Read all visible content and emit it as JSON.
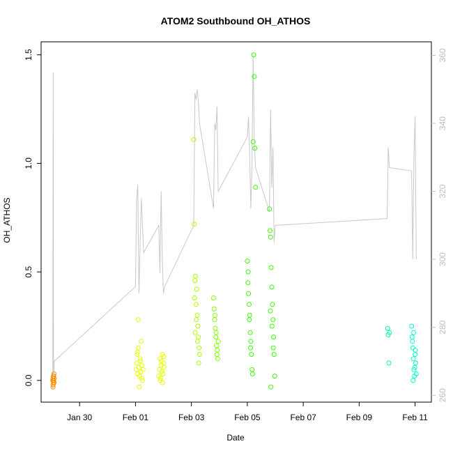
{
  "chart_data": {
    "type": "scatter",
    "title": "ATOM2 Southbound OH_ATHOS",
    "xlabel": "Date",
    "ylabel": "OH_ATHOS",
    "x_unit": "date",
    "xlim": [
      "2016-01-28T15:00",
      "2016-02-11T14:00"
    ],
    "ylim": [
      -0.1,
      1.56
    ],
    "y2lim": [
      258,
      364
    ],
    "x_ticks": [
      {
        "label": "Jan 30",
        "date": "2016-01-30"
      },
      {
        "label": "Feb 01",
        "date": "2016-02-01"
      },
      {
        "label": "Feb 03",
        "date": "2016-02-03"
      },
      {
        "label": "Feb 05",
        "date": "2016-02-05"
      },
      {
        "label": "Feb 07",
        "date": "2016-02-07"
      },
      {
        "label": "Feb 09",
        "date": "2016-02-09"
      },
      {
        "label": "Feb 11",
        "date": "2016-02-11"
      }
    ],
    "y_ticks": [
      {
        "label": "0.0",
        "value": 0.0
      },
      {
        "label": "0.5",
        "value": 0.5
      },
      {
        "label": "1.0",
        "value": 1.0
      },
      {
        "label": "1.5",
        "value": 1.5
      }
    ],
    "y2_ticks": [
      {
        "label": "260",
        "value": 260
      },
      {
        "label": "280",
        "value": 280
      },
      {
        "label": "300",
        "value": 300
      },
      {
        "label": "320",
        "value": 320
      },
      {
        "label": "340",
        "value": 340
      },
      {
        "label": "360",
        "value": 360
      }
    ],
    "colors": {
      "line": "#c8c8c8",
      "axis": "#000000",
      "y2_axis": "#bdbdbd",
      "flights": [
        "#ff8c00",
        "#e6ff00",
        "#e6ff00",
        "#aaff00",
        "#80ff00",
        "#33ff00",
        "#33ff00",
        "#00ff99",
        "#00ffcc"
      ]
    },
    "grid": false,
    "legend": "none",
    "flights": [
      {
        "color": "#ff8c00",
        "x": [
          "2016-01-29T01:00",
          "2016-01-29T01:10",
          "2016-01-29T01:20",
          "2016-01-29T01:30",
          "2016-01-29T01:40",
          "2016-01-29T01:50",
          "2016-01-29T02:00",
          "2016-01-29T02:10",
          "2016-01-29T01:15",
          "2016-01-29T01:35",
          "2016-01-29T01:45",
          "2016-01-29T02:05"
        ],
        "y": [
          0.0,
          0.01,
          -0.02,
          0.02,
          -0.01,
          0.0,
          0.03,
          0.01,
          -0.03,
          0.0,
          0.02,
          -0.01
        ]
      },
      {
        "color": "#e6ff00",
        "x": [
          "2016-02-01T00:30",
          "2016-02-01T01:00",
          "2016-02-01T01:30",
          "2016-02-01T02:00",
          "2016-02-01T02:30",
          "2016-02-01T03:00",
          "2016-02-01T03:30",
          "2016-02-01T04:00",
          "2016-02-01T04:30",
          "2016-02-01T05:00",
          "2016-02-01T05:30",
          "2016-02-01T06:00",
          "2016-02-01T06:30",
          "2016-02-01T02:15",
          "2016-02-01T03:15",
          "2016-02-01T04:15",
          "2016-02-01T01:45",
          "2016-02-01T05:15"
        ],
        "y": [
          0.05,
          0.08,
          0.12,
          0.03,
          0.15,
          0.06,
          0.02,
          0.1,
          0.04,
          0.18,
          0.07,
          0.0,
          0.05,
          0.28,
          -0.03,
          0.09,
          0.13,
          0.01
        ]
      },
      {
        "color": "#e6ff00",
        "x": [
          "2016-02-01T20:00",
          "2016-02-01T20:30",
          "2016-02-01T21:00",
          "2016-02-01T21:30",
          "2016-02-01T22:00",
          "2016-02-01T22:30",
          "2016-02-01T23:00",
          "2016-02-01T23:30",
          "2016-02-02T00:00",
          "2016-02-02T00:30",
          "2016-02-01T21:15",
          "2016-02-01T22:15",
          "2016-02-01T23:15",
          "2016-02-02T00:15"
        ],
        "y": [
          0.02,
          0.05,
          0.1,
          0.01,
          0.07,
          0.04,
          0.12,
          0.03,
          0.08,
          0.06,
          0.0,
          0.09,
          -0.01,
          0.11
        ]
      },
      {
        "color": "#aaff00",
        "x": [
          "2016-02-03T02:00",
          "2016-02-03T02:30",
          "2016-02-03T03:00",
          "2016-02-03T03:30",
          "2016-02-03T04:00",
          "2016-02-03T04:30",
          "2016-02-03T05:00",
          "2016-02-03T05:30",
          "2016-02-03T06:00",
          "2016-02-03T06:30",
          "2016-02-03T07:00",
          "2016-02-03T03:15",
          "2016-02-03T04:15",
          "2016-02-03T05:15",
          "2016-02-03T06:15",
          "2016-02-03T02:45"
        ],
        "y": [
          1.11,
          0.72,
          0.46,
          0.48,
          0.35,
          0.42,
          0.3,
          0.25,
          0.2,
          0.15,
          0.12,
          0.22,
          0.28,
          0.18,
          0.08,
          0.38
        ]
      },
      {
        "color": "#80ff00",
        "x": [
          "2016-02-03T19:00",
          "2016-02-03T19:30",
          "2016-02-03T20:00",
          "2016-02-03T20:30",
          "2016-02-03T21:00",
          "2016-02-03T21:30",
          "2016-02-03T22:00",
          "2016-02-03T22:30",
          "2016-02-03T23:00",
          "2016-02-03T20:15",
          "2016-02-03T21:15",
          "2016-02-03T22:15"
        ],
        "y": [
          0.38,
          0.33,
          0.28,
          0.24,
          0.2,
          0.16,
          0.12,
          0.1,
          0.18,
          0.3,
          0.22,
          0.14
        ]
      },
      {
        "color": "#33ff00",
        "x": [
          "2016-02-05T00:00",
          "2016-02-05T00:30",
          "2016-02-05T01:00",
          "2016-02-05T01:30",
          "2016-02-05T02:00",
          "2016-02-05T02:30",
          "2016-02-05T03:00",
          "2016-02-05T03:30",
          "2016-02-05T04:00",
          "2016-02-05T04:30",
          "2016-02-05T05:00",
          "2016-02-05T05:30",
          "2016-02-05T06:00",
          "2016-02-05T06:30",
          "2016-02-05T07:00",
          "2016-02-05T00:45",
          "2016-02-05T01:45",
          "2016-02-05T02:45"
        ],
        "y": [
          0.55,
          0.45,
          0.4,
          0.35,
          0.3,
          0.22,
          0.18,
          0.12,
          0.05,
          0.03,
          1.1,
          1.5,
          1.4,
          1.07,
          0.89,
          0.5,
          0.28,
          0.15
        ]
      },
      {
        "color": "#33ff00",
        "x": [
          "2016-02-05T19:00",
          "2016-02-05T19:30",
          "2016-02-05T20:00",
          "2016-02-05T20:30",
          "2016-02-05T21:00",
          "2016-02-05T21:30",
          "2016-02-05T22:00",
          "2016-02-05T22:30",
          "2016-02-05T23:00",
          "2016-02-05T23:30",
          "2016-02-05T20:15",
          "2016-02-05T21:15",
          "2016-02-05T22:15",
          "2016-02-05T19:45"
        ],
        "y": [
          0.79,
          0.69,
          0.66,
          0.52,
          0.43,
          0.35,
          0.28,
          0.2,
          0.12,
          0.02,
          -0.03,
          0.25,
          0.15,
          0.32
        ]
      },
      {
        "color": "#00ff99",
        "x": [
          "2016-02-10T00:30",
          "2016-02-10T01:00",
          "2016-02-10T01:30",
          "2016-02-10T02:00"
        ],
        "y": [
          0.24,
          0.21,
          0.08,
          0.22
        ]
      },
      {
        "color": "#00ffcc",
        "x": [
          "2016-02-10T21:00",
          "2016-02-10T21:30",
          "2016-02-10T22:00",
          "2016-02-10T22:30",
          "2016-02-10T23:00",
          "2016-02-10T23:30",
          "2016-02-11T00:00",
          "2016-02-11T00:30",
          "2016-02-11T01:00",
          "2016-02-10T21:45",
          "2016-02-10T22:45",
          "2016-02-10T23:45",
          "2016-02-11T00:15",
          "2016-02-10T22:15"
        ],
        "y": [
          0.25,
          0.2,
          0.15,
          0.1,
          0.05,
          0.02,
          0.12,
          0.08,
          0.03,
          0.18,
          0.22,
          0.06,
          0.14,
          0.0
        ]
      }
    ],
    "secondary_line": {
      "y_axis": "right",
      "x": [
        "2016-01-29T01:00",
        "2016-01-29T01:20",
        "2016-01-29T01:40",
        "2016-01-29T02:00",
        "2016-01-29T02:10",
        "2016-02-01T00:00",
        "2016-02-01T01:00",
        "2016-02-01T02:00",
        "2016-02-01T03:00",
        "2016-02-01T04:00",
        "2016-02-01T05:00",
        "2016-02-01T06:00",
        "2016-02-01T07:00",
        "2016-02-01T20:00",
        "2016-02-01T21:00",
        "2016-02-01T22:00",
        "2016-02-01T23:00",
        "2016-02-02T00:00",
        "2016-02-02T01:00",
        "2016-02-03T02:00",
        "2016-02-03T03:00",
        "2016-02-03T04:00",
        "2016-02-03T05:00",
        "2016-02-03T06:00",
        "2016-02-03T07:00",
        "2016-02-03T19:00",
        "2016-02-03T20:00",
        "2016-02-03T21:00",
        "2016-02-03T22:00",
        "2016-02-03T23:00",
        "2016-02-05T00:00",
        "2016-02-05T01:00",
        "2016-02-05T02:00",
        "2016-02-05T03:00",
        "2016-02-05T04:00",
        "2016-02-05T05:00",
        "2016-02-05T06:00",
        "2016-02-05T07:00",
        "2016-02-05T19:00",
        "2016-02-05T20:00",
        "2016-02-05T21:00",
        "2016-02-05T22:00",
        "2016-02-05T23:00",
        "2016-02-06T00:00",
        "2016-02-10T00:00",
        "2016-02-10T01:00",
        "2016-02-10T02:00",
        "2016-02-10T21:00",
        "2016-02-10T22:00",
        "2016-02-10T23:00",
        "2016-02-11T00:00",
        "2016-02-11T01:00"
      ],
      "y": [
        262,
        355,
        268,
        266,
        270,
        292,
        318,
        322,
        290,
        305,
        318,
        310,
        302,
        310,
        296,
        320,
        300,
        290,
        292,
        310,
        349,
        347,
        350,
        346,
        340,
        315,
        340,
        338,
        345,
        320,
        336,
        342,
        331,
        315,
        328,
        360,
        335,
        327,
        314,
        344,
        321,
        333,
        305,
        310,
        312,
        333,
        327,
        326,
        300,
        330,
        342,
        300
      ]
    }
  }
}
